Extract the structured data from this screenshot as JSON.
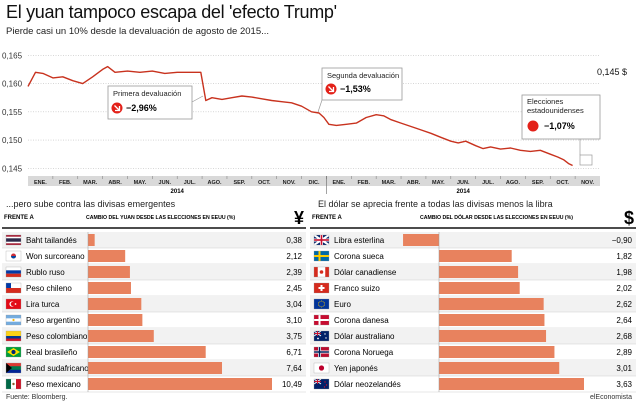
{
  "header": {
    "title": "El yuan tampoco escapa del 'efecto Trump'",
    "subtitle": "Pierde casi un 10% desde la devaluación de agosto de 2015..."
  },
  "colors": {
    "line": "#c8321e",
    "bar": "#e8825e",
    "row_alt": "#f2f2f2",
    "axis_band": "#d9d9d9",
    "red": "#e32119"
  },
  "chart_data": [
    {
      "type": "line",
      "y_ticks": [
        "0,165",
        "0,160",
        "0,155",
        "0,150",
        "0,145"
      ],
      "ylim": [
        0.144,
        0.167
      ],
      "x_ticks": [
        "ENE.",
        "FEB.",
        "MAR.",
        "ABR.",
        "MAY.",
        "JUN.",
        "JUL.",
        "AGO.",
        "SEP.",
        "OCT.",
        "NOV.",
        "DIC.",
        "ENE.",
        "FEB.",
        "MAR.",
        "ABR.",
        "MAY.",
        "JUN.",
        "JUL.",
        "AGO.",
        "SEP.",
        "OCT.",
        "NOV."
      ],
      "year_labels": [
        "2014",
        "2014"
      ],
      "end_label": "0,145 $",
      "series_points": [
        [
          0.0,
          0.1595
        ],
        [
          0.3,
          0.162
        ],
        [
          0.6,
          0.1618
        ],
        [
          1.0,
          0.161
        ],
        [
          1.4,
          0.1612
        ],
        [
          1.8,
          0.1605
        ],
        [
          2.2,
          0.16
        ],
        [
          2.6,
          0.1612
        ],
        [
          3.0,
          0.1625
        ],
        [
          3.2,
          0.163
        ],
        [
          3.5,
          0.162
        ],
        [
          4.0,
          0.1622
        ],
        [
          4.5,
          0.162
        ],
        [
          5.0,
          0.1622
        ],
        [
          5.5,
          0.1618
        ],
        [
          6.0,
          0.162
        ],
        [
          6.5,
          0.162
        ],
        [
          6.95,
          0.162
        ],
        [
          7.05,
          0.1595
        ],
        [
          7.15,
          0.157
        ],
        [
          7.4,
          0.1575
        ],
        [
          7.8,
          0.1572
        ],
        [
          8.2,
          0.1575
        ],
        [
          8.6,
          0.1578
        ],
        [
          9.0,
          0.1576
        ],
        [
          9.4,
          0.1573
        ],
        [
          9.8,
          0.157
        ],
        [
          10.2,
          0.1568
        ],
        [
          10.6,
          0.1566
        ],
        [
          11.0,
          0.156
        ],
        [
          11.4,
          0.155
        ],
        [
          11.7,
          0.1548
        ],
        [
          11.9,
          0.154
        ],
        [
          12.1,
          0.1528
        ],
        [
          12.4,
          0.1526
        ],
        [
          12.8,
          0.1528
        ],
        [
          13.2,
          0.153
        ],
        [
          13.6,
          0.154
        ],
        [
          14.0,
          0.1545
        ],
        [
          14.3,
          0.1543
        ],
        [
          14.6,
          0.1536
        ],
        [
          15.0,
          0.153
        ],
        [
          15.4,
          0.1524
        ],
        [
          15.8,
          0.1518
        ],
        [
          16.2,
          0.1512
        ],
        [
          16.6,
          0.1505
        ],
        [
          17.0,
          0.1498
        ],
        [
          17.3,
          0.1495
        ],
        [
          17.6,
          0.1498
        ],
        [
          18.0,
          0.149
        ],
        [
          18.3,
          0.1485
        ],
        [
          18.6,
          0.1488
        ],
        [
          19.0,
          0.1484
        ],
        [
          19.4,
          0.1486
        ],
        [
          19.8,
          0.1482
        ],
        [
          20.2,
          0.148
        ],
        [
          20.6,
          0.1482
        ],
        [
          21.0,
          0.1475
        ],
        [
          21.3,
          0.147
        ],
        [
          21.55,
          0.1465
        ],
        [
          21.75,
          0.1458
        ],
        [
          21.9,
          0.1455
        ]
      ],
      "annotations": [
        {
          "label": "Primera devaluación",
          "value": "−2,96%",
          "icon": "arrow-down-icon"
        },
        {
          "label": "Segunda devaluación",
          "value": "−1,53%",
          "icon": "arrow-down-icon"
        },
        {
          "label": "Elecciones estadounidenses",
          "value": "−1,07%",
          "icon": "red-dot-icon"
        }
      ]
    },
    {
      "type": "bar",
      "section_title": "...pero sube contra las divisas emergentes",
      "col_left": "FRENTE A",
      "col_right": "CAMBIO DEL YUAN DESDE LAS ELECCIONES EN EEUU (%)",
      "currency_symbol": "¥",
      "xlim": [
        0,
        10.49
      ],
      "rows": [
        {
          "name": "Baht tailandés",
          "value": 0.38,
          "label": "0,38",
          "flag": "thailand"
        },
        {
          "name": "Won surcoreano",
          "value": 2.12,
          "label": "2,12",
          "flag": "south-korea"
        },
        {
          "name": "Rublo ruso",
          "value": 2.39,
          "label": "2,39",
          "flag": "russia"
        },
        {
          "name": "Peso chileno",
          "value": 2.45,
          "label": "2,45",
          "flag": "chile"
        },
        {
          "name": "Lira turca",
          "value": 3.04,
          "label": "3,04",
          "flag": "turkey"
        },
        {
          "name": "Peso argentino",
          "value": 3.1,
          "label": "3,10",
          "flag": "argentina"
        },
        {
          "name": "Peso colombiano",
          "value": 3.75,
          "label": "3,75",
          "flag": "colombia"
        },
        {
          "name": "Real brasileño",
          "value": 6.71,
          "label": "6,71",
          "flag": "brazil"
        },
        {
          "name": "Rand sudafricano",
          "value": 7.64,
          "label": "7,64",
          "flag": "south-africa"
        },
        {
          "name": "Peso mexicano",
          "value": 10.49,
          "label": "10,49",
          "flag": "mexico"
        }
      ]
    },
    {
      "type": "bar",
      "section_title": "El dólar se aprecia frente a todas las divisas menos la libra",
      "col_left": "FRENTE A",
      "col_right": "CAMBIO DEL DÓLAR DESDE LAS ELECCIONES EN EEUU (%)",
      "currency_symbol": "$",
      "xlim": [
        -0.9,
        3.63
      ],
      "rows": [
        {
          "name": "Libra esterlina",
          "value": -0.9,
          "label": "−0,90",
          "flag": "uk"
        },
        {
          "name": "Corona sueca",
          "value": 1.82,
          "label": "1,82",
          "flag": "sweden"
        },
        {
          "name": "Dólar canadiense",
          "value": 1.98,
          "label": "1,98",
          "flag": "canada"
        },
        {
          "name": "Franco suizo",
          "value": 2.02,
          "label": "2,02",
          "flag": "switzerland"
        },
        {
          "name": "Euro",
          "value": 2.62,
          "label": "2,62",
          "flag": "eu"
        },
        {
          "name": "Corona danesa",
          "value": 2.64,
          "label": "2,64",
          "flag": "denmark"
        },
        {
          "name": "Dólar australiano",
          "value": 2.68,
          "label": "2,68",
          "flag": "australia"
        },
        {
          "name": "Corona Noruega",
          "value": 2.89,
          "label": "2,89",
          "flag": "norway"
        },
        {
          "name": "Yen japonés",
          "value": 3.01,
          "label": "3,01",
          "flag": "japan"
        },
        {
          "name": "Dólar neozelandés",
          "value": 3.63,
          "label": "3,63",
          "flag": "new-zealand"
        }
      ]
    }
  ],
  "footer": {
    "source": "Fuente: Bloomberg.",
    "brand": "elEconomista"
  }
}
